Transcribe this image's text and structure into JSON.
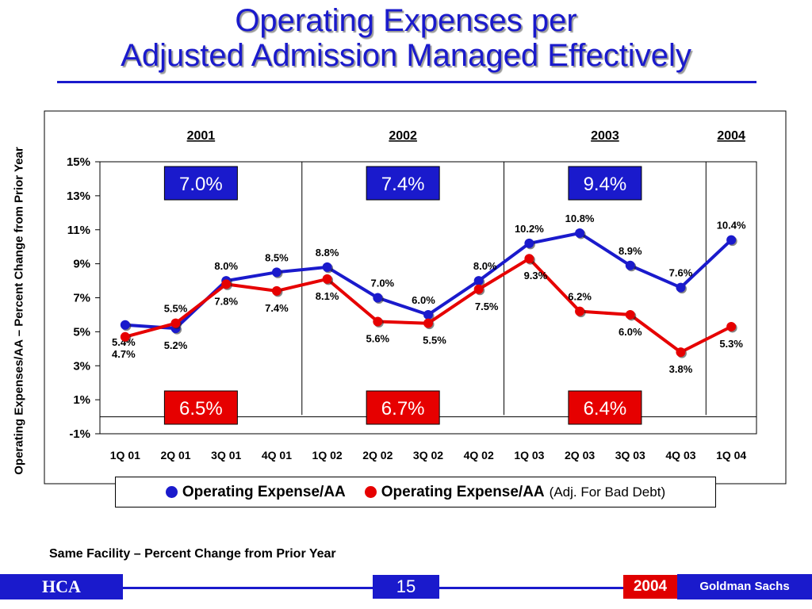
{
  "slide": {
    "title_line1": "Operating Expenses per",
    "title_line2": "Adjusted Admission Managed Effectively",
    "footnote": "Same Facility – Percent Change from Prior Year",
    "page_number": "15",
    "footer_brand": "HCA",
    "footer_year": "2004",
    "footer_partner": "Goldman Sachs"
  },
  "chart_data": {
    "type": "line",
    "ylabel": "Operating Expenses/AA – Percent Change from Prior Year",
    "categories": [
      "1Q 01",
      "2Q 01",
      "3Q 01",
      "4Q 01",
      "1Q 02",
      "2Q 02",
      "3Q 02",
      "4Q 02",
      "1Q 03",
      "2Q 03",
      "3Q 03",
      "4Q 03",
      "1Q 04"
    ],
    "ylim": [
      -1,
      15
    ],
    "yticks": [
      -1,
      1,
      3,
      5,
      7,
      9,
      11,
      13,
      15
    ],
    "ytick_labels": [
      "-1%",
      "1%",
      "3%",
      "5%",
      "7%",
      "9%",
      "11%",
      "13%",
      "15%"
    ],
    "series": [
      {
        "name": "Operating Expense/AA",
        "color": "#1a1acc",
        "values": [
          5.4,
          5.2,
          8.0,
          8.5,
          8.8,
          7.0,
          6.0,
          8.0,
          10.2,
          10.8,
          8.9,
          7.6,
          10.4
        ],
        "labels": [
          "5.4%",
          "5.2%",
          "8.0%",
          "8.5%",
          "8.8%",
          "7.0%",
          "6.0%",
          "8.0%",
          "10.2%",
          "10.8%",
          "8.9%",
          "7.6%",
          "10.4%"
        ]
      },
      {
        "name": "Operating Expense/AA",
        "name_suffix": "(Adj. For Bad Debt)",
        "color": "#e60000",
        "values": [
          4.7,
          5.5,
          7.8,
          7.4,
          8.1,
          5.6,
          5.5,
          7.5,
          9.3,
          6.2,
          6.0,
          3.8,
          5.3
        ],
        "labels": [
          "4.7%",
          "5.5%",
          "7.8%",
          "7.4%",
          "8.1%",
          "5.6%",
          "5.5%",
          "7.5%",
          "9.3%",
          "6.2%",
          "6.0%",
          "3.8%",
          "5.3%"
        ]
      }
    ],
    "year_groups": [
      {
        "label": "2001",
        "start": 0,
        "end": 3,
        "top_value": "7.0%",
        "bottom_value": "6.5%"
      },
      {
        "label": "2002",
        "start": 4,
        "end": 7,
        "top_value": "7.4%",
        "bottom_value": "6.7%"
      },
      {
        "label": "2003",
        "start": 8,
        "end": 11,
        "top_value": "9.4%",
        "bottom_value": "6.4%"
      },
      {
        "label": "2004",
        "start": 12,
        "end": 12,
        "top_value": "",
        "bottom_value": ""
      }
    ],
    "top_box_color": "#1a1acc",
    "bottom_box_color": "#e60000",
    "grid": false,
    "legend_position": "bottom"
  }
}
